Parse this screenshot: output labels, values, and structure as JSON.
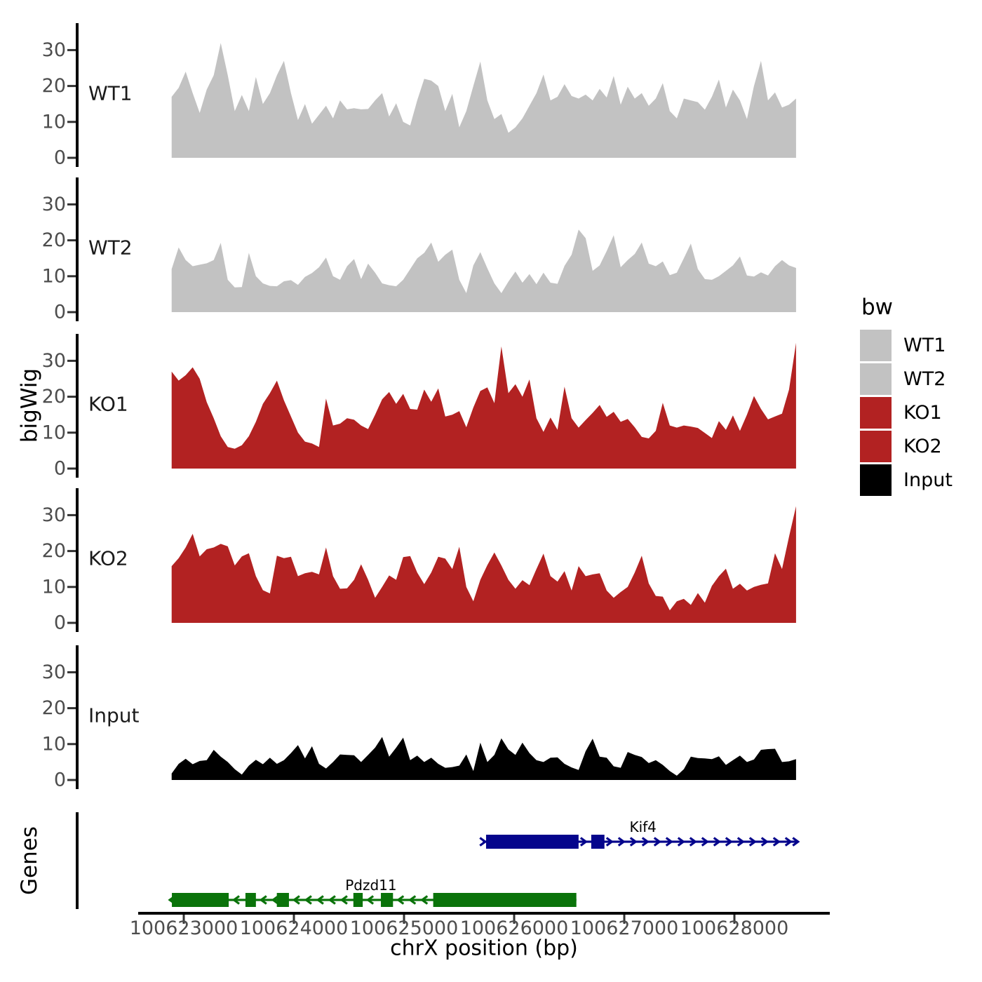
{
  "figure": {
    "y_axis_title": "bigWig",
    "x_axis_title": "chrX position (bp)",
    "genes_panel_title": "Genes",
    "colors": {
      "gray": "#C2C2C2",
      "red": "#B22222",
      "black": "#000000",
      "navy": "#05058C",
      "green": "#0A730A",
      "tick_text": "#4D4D4D",
      "axis": "#000000"
    }
  },
  "legend": {
    "title": "bw",
    "entries": [
      {
        "label": "WT1",
        "color_key": "gray"
      },
      {
        "label": "WT2",
        "color_key": "gray"
      },
      {
        "label": "KO1",
        "color_key": "red"
      },
      {
        "label": "KO2",
        "color_key": "red"
      },
      {
        "label": "Input",
        "color_key": "black"
      }
    ]
  },
  "chart_data": {
    "type": "area",
    "title": "",
    "xlabel": "chrX position (bp)",
    "ylabel": "bigWig",
    "chromosome": "chrX",
    "x_range_bp": [
      100622890,
      100628560
    ],
    "x_ticks": [
      100623000,
      100624000,
      100625000,
      100626000,
      100627000,
      100628000
    ],
    "y_ticks": [
      0,
      10,
      20,
      30
    ],
    "ylim": [
      0,
      37.5
    ],
    "grid": false,
    "legend_position": "right",
    "tracks": [
      {
        "name": "WT1",
        "color_key": "gray",
        "values": [
          17,
          19.5,
          24,
          18,
          12.5,
          19,
          23,
          32,
          23,
          13,
          17.5,
          13,
          22.5,
          15,
          18,
          23,
          27,
          18,
          10.5,
          15,
          9.5,
          12,
          14.5,
          11,
          16,
          13.5,
          13.8,
          13.5,
          13.6,
          16,
          18,
          11.5,
          15.2,
          10,
          9,
          16,
          22,
          21.5,
          20,
          13,
          17.8,
          8.5,
          13,
          20,
          26.8,
          16,
          10.8,
          12.2,
          7,
          8.5,
          11,
          14.5,
          18,
          23.2,
          16,
          17,
          20.5,
          17.2,
          16.5,
          17.6,
          16,
          19.2,
          16.8,
          22.8,
          14.8,
          19.8,
          16.5,
          18,
          14.5,
          16.5,
          20.8,
          13,
          11,
          16.5,
          16,
          15.5,
          13.4,
          17,
          21.8,
          14,
          19,
          16,
          10.8,
          20,
          27,
          16,
          18.2,
          14,
          14.8,
          16.5
        ]
      },
      {
        "name": "WT2",
        "color_key": "gray",
        "values": [
          12,
          18,
          14.5,
          12.8,
          13.2,
          13.6,
          14.5,
          19.3,
          9,
          6.9,
          7,
          16.5,
          10,
          8,
          7.3,
          7.2,
          8.6,
          8.9,
          7.6,
          9.8,
          10.9,
          12.5,
          15.2,
          10,
          9,
          12.8,
          14.8,
          9.2,
          13.5,
          11,
          8,
          7.5,
          7.2,
          9,
          12,
          15,
          16.5,
          19.4,
          14,
          16,
          17.4,
          9,
          5.3,
          13,
          16.7,
          12.2,
          8,
          5.3,
          8.5,
          11.3,
          8.2,
          10.6,
          7.8,
          11,
          8.2,
          7.9,
          12.9,
          16,
          23,
          20.6,
          11.5,
          13,
          17,
          21.4,
          12.5,
          14.5,
          16.2,
          19.4,
          13.5,
          12.8,
          14.1,
          10.3,
          11,
          15,
          19.1,
          12,
          9.2,
          9,
          10,
          11.5,
          13,
          15.5,
          10.2,
          9.9,
          11.1,
          10.2,
          12.8,
          14.5,
          13,
          12.3
        ]
      },
      {
        "name": "KO1",
        "color_key": "red",
        "values": [
          27,
          24.5,
          26,
          28.2,
          25,
          18.5,
          14,
          9,
          6,
          5.5,
          6.5,
          9,
          13,
          18,
          21,
          24.5,
          19,
          14.5,
          10,
          7.5,
          7,
          6,
          19.5,
          12,
          12.5,
          14,
          13.6,
          12,
          11,
          15,
          19.3,
          21.3,
          18,
          20.8,
          16.6,
          16.4,
          22,
          18.6,
          22.3,
          14.5,
          15,
          16,
          11.5,
          17,
          21.6,
          22.6,
          18.2,
          34,
          21,
          23.5,
          20,
          24.8,
          14,
          10.2,
          14.2,
          10.8,
          22.8,
          14,
          11.4,
          13.5,
          15.5,
          17.7,
          14.4,
          15.8,
          13,
          13.8,
          11.5,
          8.8,
          8.4,
          10.5,
          18.3,
          12,
          11.4,
          12,
          11.7,
          11.3,
          9.9,
          8.5,
          13.2,
          10.8,
          14.8,
          10.5,
          15,
          20.2,
          16.6,
          13.7,
          14.5,
          15.3,
          22,
          35
        ]
      },
      {
        "name": "KO2",
        "color_key": "red",
        "values": [
          15.8,
          18,
          21,
          24.8,
          18.5,
          20.5,
          21,
          22,
          21.3,
          16,
          18.5,
          19.4,
          13,
          9.1,
          8.2,
          18.7,
          18,
          18.4,
          13,
          13.8,
          14.2,
          13.5,
          21,
          13,
          9.5,
          9.6,
          12,
          16.3,
          12,
          7,
          10,
          13.2,
          12,
          18.3,
          18.6,
          14,
          10.8,
          14,
          18.4,
          17.9,
          15,
          21.2,
          10,
          6,
          12,
          16.1,
          19.6,
          16,
          12,
          9.5,
          11.9,
          10.5,
          15,
          19.3,
          13,
          11.5,
          14.4,
          9,
          15.8,
          13,
          13.5,
          13.8,
          9,
          7,
          8.6,
          10,
          14,
          18.7,
          11,
          7.5,
          7.3,
          3.5,
          6,
          6.7,
          5,
          8.3,
          5.6,
          10.3,
          13,
          15.1,
          9.5,
          10.9,
          9,
          10,
          10.6,
          11,
          19.4,
          15,
          24,
          32.5
        ]
      },
      {
        "name": "Input",
        "color_key": "black",
        "values": [
          1.8,
          4.5,
          5.9,
          4.4,
          5.3,
          5.5,
          8.4,
          6.5,
          5,
          3,
          1.5,
          4,
          5.6,
          4.4,
          6.2,
          4.5,
          5.5,
          7.5,
          9.7,
          6,
          9.4,
          4.5,
          3.2,
          5,
          7.1,
          7,
          6.9,
          5,
          7,
          9,
          12,
          6.5,
          9,
          11.8,
          5.5,
          6.8,
          5,
          6.2,
          4.5,
          3.4,
          3.6,
          4,
          7.1,
          2.5,
          10.4,
          5,
          7,
          11.6,
          8.5,
          7,
          10.4,
          7.5,
          5.5,
          5,
          6.2,
          6.3,
          4.5,
          3.5,
          2.8,
          8,
          11.5,
          6.5,
          6.2,
          3.8,
          3.4,
          7.8,
          7,
          6.4,
          4.7,
          5.5,
          4.2,
          2.5,
          1.2,
          3,
          6.5,
          6.1,
          6,
          5.8,
          6.6,
          4.2,
          5.5,
          6.8,
          5,
          5.7,
          8.4,
          8.6,
          8.7,
          5,
          5.2,
          5.8
        ]
      }
    ],
    "genes": [
      {
        "label": "Kif4",
        "strand": "+",
        "color_key": "navy",
        "line_start": 100625715,
        "line_end": 100628575,
        "exons": [
          [
            100625745,
            100626585
          ],
          [
            100626700,
            100626820
          ]
        ],
        "label_bp": 100627170
      },
      {
        "label": "Pdzd11",
        "strand": "-",
        "color_key": "green",
        "line_start": 100622870,
        "line_end": 100626565,
        "exons": [
          [
            100622892,
            100623408
          ],
          [
            100623560,
            100623655
          ],
          [
            100623845,
            100623955
          ],
          [
            100624540,
            100624625
          ],
          [
            100624790,
            100624900
          ],
          [
            100625265,
            100626565
          ]
        ],
        "label_bp": 100624700
      }
    ]
  }
}
